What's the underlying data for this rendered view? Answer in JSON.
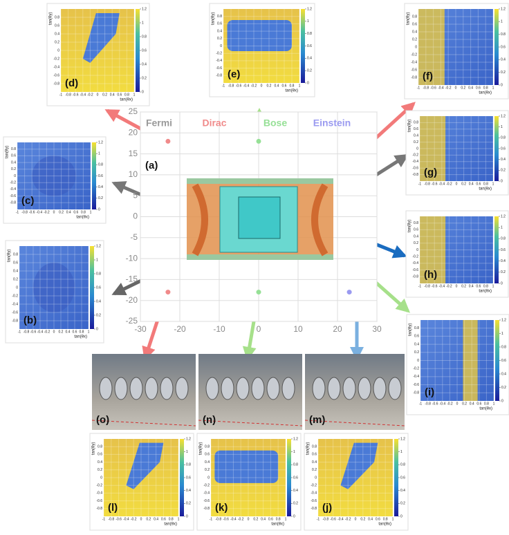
{
  "center_plot": {
    "label": "(a)",
    "xlim": [
      -30,
      30
    ],
    "ylim": [
      -25,
      25
    ],
    "xticks": [
      -30,
      -20,
      -10,
      0,
      10,
      20,
      30
    ],
    "yticks": [
      -25,
      -20,
      -15,
      -10,
      -5,
      0,
      5,
      10,
      15,
      20,
      25
    ],
    "legend": [
      "Fermi",
      "Dirac",
      "Bose",
      "Einstein"
    ],
    "legend_colors": [
      "#9a9a9a",
      "#f08a8a",
      "#96e096",
      "#9a9af0"
    ],
    "points": {
      "x": [
        -23,
        0,
        -23,
        0,
        23
      ],
      "y": [
        18,
        18,
        -18,
        -18,
        -18
      ],
      "colors": [
        "#f08a8a",
        "#96e096",
        "#f08a8a",
        "#96e096",
        "#9a9af0"
      ]
    }
  },
  "panel_axes": {
    "xlabel": "tan(θx)",
    "ylabel": "tan(θy)",
    "xticks": [
      -1,
      -0.8,
      -0.6,
      -0.4,
      -0.2,
      0,
      0.2,
      0.4,
      0.6,
      0.8,
      1
    ],
    "yticks": [
      -0.8,
      -0.6,
      -0.4,
      -0.2,
      0,
      0.2,
      0.4,
      0.6,
      0.8
    ],
    "colorbar_ticks": [
      0,
      0.2,
      0.4,
      0.6,
      0.8,
      1,
      1.2
    ]
  },
  "panels": [
    {
      "label": "(b)"
    },
    {
      "label": "(c)"
    },
    {
      "label": "(d)"
    },
    {
      "label": "(e)"
    },
    {
      "label": "(f)"
    },
    {
      "label": "(g)"
    },
    {
      "label": "(h)"
    },
    {
      "label": "(i)"
    },
    {
      "label": "(j)"
    },
    {
      "label": "(k)"
    },
    {
      "label": "(l)"
    }
  ],
  "photos": [
    {
      "label": "(m)"
    },
    {
      "label": "(n)"
    },
    {
      "label": "(o)"
    }
  ]
}
